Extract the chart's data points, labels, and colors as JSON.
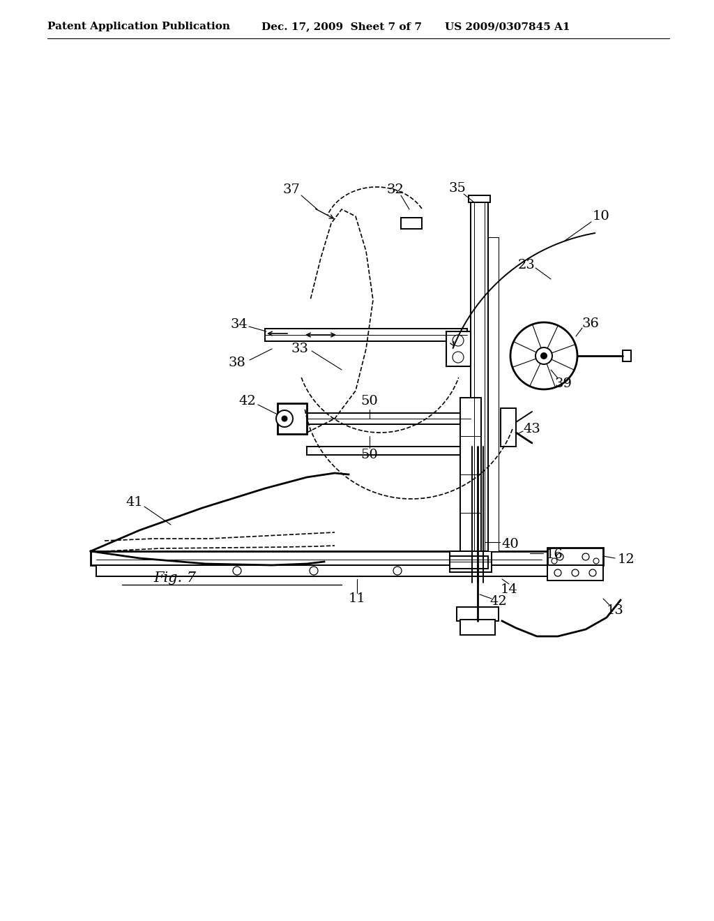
{
  "bg_color": "#ffffff",
  "line_color": "#000000",
  "header_left": "Patent Application Publication",
  "header_mid": "Dec. 17, 2009  Sheet 7 of 7",
  "header_right": "US 2009/0307845 A1",
  "fig_label": "Fig. 7",
  "label_fontsize": 14,
  "header_fontsize": 11
}
